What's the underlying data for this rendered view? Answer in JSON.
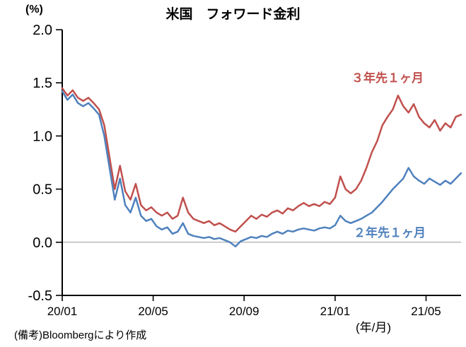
{
  "chart_data": {
    "type": "line",
    "title": "米国　フォワード金利",
    "ylabel": "(%)",
    "xlabel": "(年/月)",
    "note": "(備考)Bloombergにより作成",
    "ylim": [
      -0.5,
      2.0
    ],
    "x_range": [
      0,
      17.54
    ],
    "grid": "zero-line-only",
    "legend_position": "inline-annotations",
    "ytick_values": [
      2.0,
      1.5,
      1.0,
      0.5,
      0.0,
      -0.5
    ],
    "ytick_labels": [
      "2.0",
      "1.5",
      "1.0",
      "0.5",
      "0.0",
      "-0.5"
    ],
    "xtick_months": [
      0,
      4,
      8,
      12,
      16
    ],
    "xtick_labels": [
      "20/01",
      "20/05",
      "20/09",
      "21/01",
      "21/05"
    ],
    "x_months": [
      0,
      0.23,
      0.46,
      0.69,
      0.92,
      1.15,
      1.38,
      1.62,
      1.85,
      2.08,
      2.31,
      2.54,
      2.77,
      3.0,
      3.23,
      3.46,
      3.69,
      3.92,
      4.15,
      4.38,
      4.62,
      4.85,
      5.08,
      5.31,
      5.54,
      5.77,
      6.0,
      6.23,
      6.46,
      6.69,
      6.92,
      7.15,
      7.38,
      7.62,
      7.85,
      8.08,
      8.31,
      8.54,
      8.77,
      9.0,
      9.23,
      9.46,
      9.69,
      9.92,
      10.15,
      10.38,
      10.62,
      10.85,
      11.08,
      11.31,
      11.54,
      11.77,
      12.0,
      12.23,
      12.46,
      12.69,
      12.92,
      13.15,
      13.38,
      13.62,
      13.85,
      14.08,
      14.31,
      14.54,
      14.77,
      15.0,
      15.23,
      15.46,
      15.69,
      15.92,
      16.15,
      16.38,
      16.62,
      16.85,
      17.08,
      17.31,
      17.54
    ],
    "series": [
      {
        "name": "３年先１ヶ月",
        "color": "#c0504d",
        "values": [
          1.45,
          1.38,
          1.43,
          1.36,
          1.33,
          1.36,
          1.31,
          1.25,
          1.1,
          0.8,
          0.5,
          0.72,
          0.48,
          0.4,
          0.55,
          0.35,
          0.3,
          0.33,
          0.28,
          0.25,
          0.28,
          0.22,
          0.25,
          0.42,
          0.28,
          0.22,
          0.2,
          0.18,
          0.2,
          0.16,
          0.18,
          0.15,
          0.12,
          0.1,
          0.15,
          0.2,
          0.25,
          0.22,
          0.26,
          0.24,
          0.28,
          0.3,
          0.27,
          0.32,
          0.3,
          0.34,
          0.37,
          0.34,
          0.36,
          0.34,
          0.38,
          0.36,
          0.42,
          0.62,
          0.5,
          0.46,
          0.5,
          0.58,
          0.7,
          0.85,
          0.95,
          1.1,
          1.18,
          1.25,
          1.38,
          1.28,
          1.22,
          1.3,
          1.18,
          1.12,
          1.08,
          1.15,
          1.05,
          1.12,
          1.08,
          1.18,
          1.2
        ]
      },
      {
        "name": "２年先１ヶ月",
        "color": "#4f81bd",
        "values": [
          1.42,
          1.34,
          1.39,
          1.31,
          1.28,
          1.31,
          1.26,
          1.2,
          1.0,
          0.7,
          0.4,
          0.6,
          0.35,
          0.28,
          0.42,
          0.25,
          0.2,
          0.22,
          0.15,
          0.12,
          0.14,
          0.08,
          0.1,
          0.18,
          0.08,
          0.06,
          0.05,
          0.04,
          0.05,
          0.03,
          0.04,
          0.02,
          0.0,
          -0.04,
          0.01,
          0.03,
          0.05,
          0.04,
          0.06,
          0.05,
          0.08,
          0.1,
          0.08,
          0.11,
          0.1,
          0.12,
          0.13,
          0.12,
          0.11,
          0.13,
          0.14,
          0.13,
          0.16,
          0.25,
          0.2,
          0.18,
          0.2,
          0.22,
          0.25,
          0.28,
          0.33,
          0.38,
          0.44,
          0.5,
          0.55,
          0.6,
          0.7,
          0.62,
          0.58,
          0.55,
          0.6,
          0.57,
          0.54,
          0.58,
          0.55,
          0.6,
          0.65
        ]
      }
    ]
  }
}
